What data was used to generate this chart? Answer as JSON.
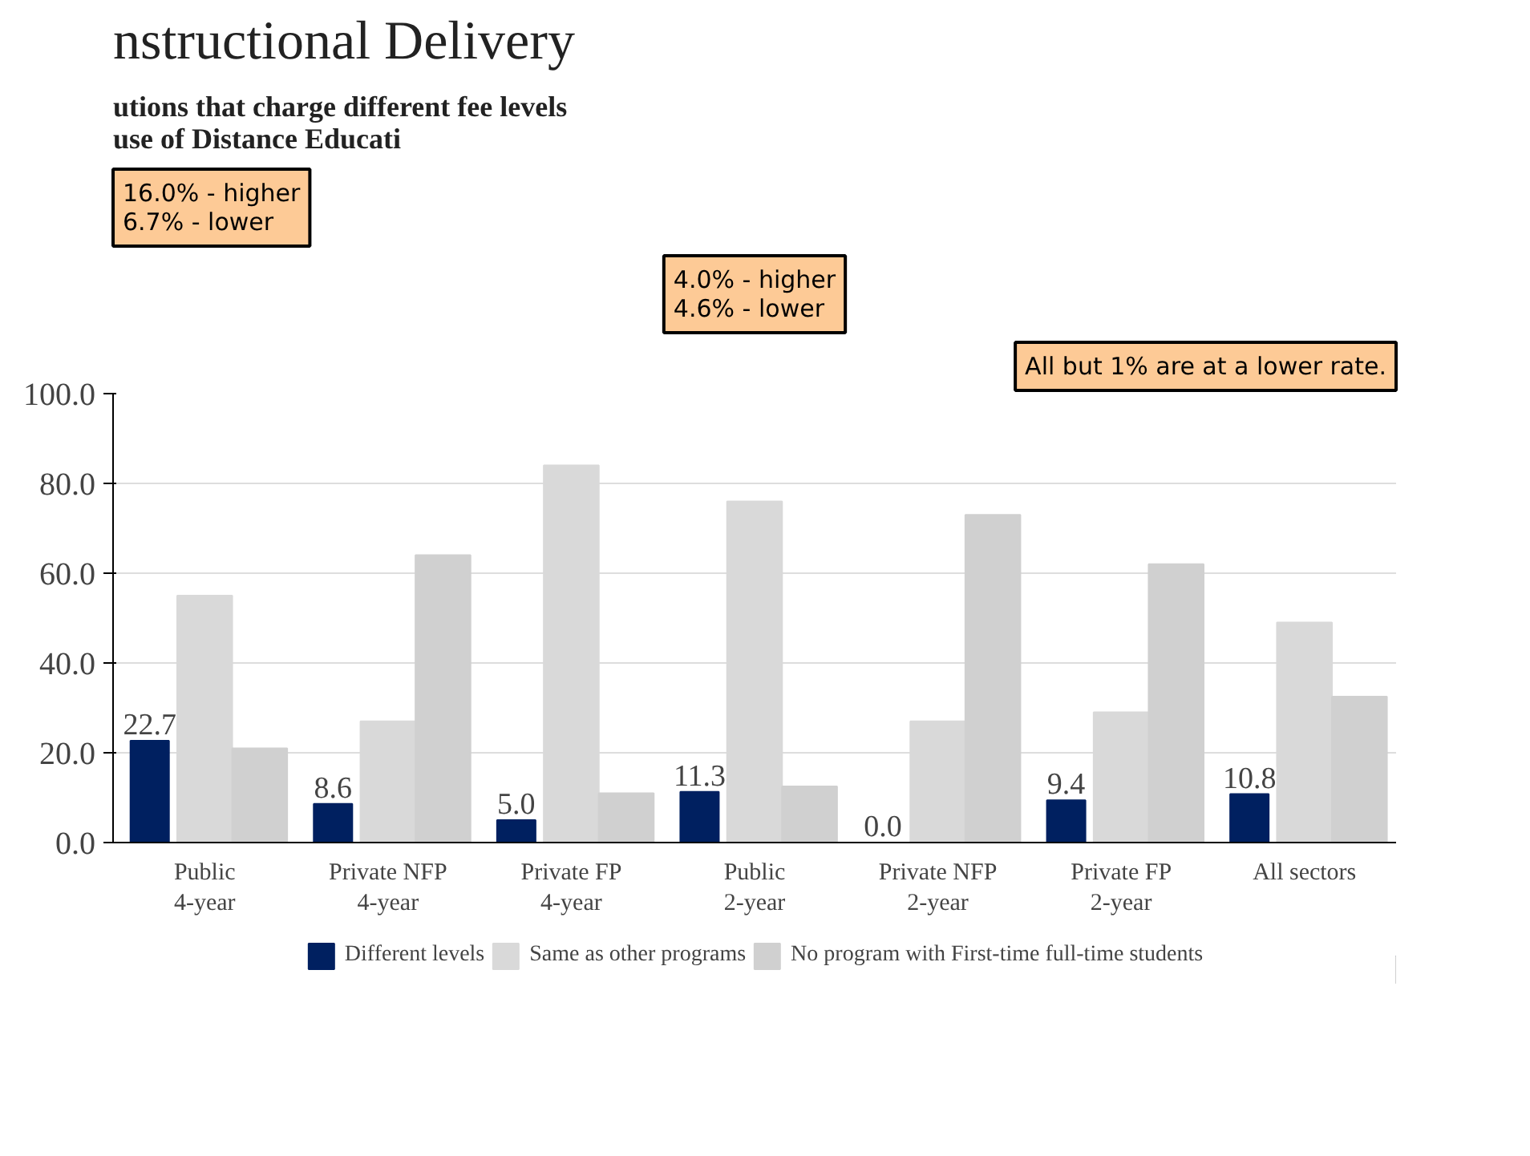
{
  "chart_data": {
    "type": "bar",
    "title": "nstructional Delivery",
    "subtitle": "utions that charge different fee levels\nuse of Distance Educati",
    "categories": [
      "Public\n4-year",
      "Private NFP\n4-year",
      "Private FP\n4-year",
      "Public\n2-year",
      "Private NFP\n2-year",
      "Private FP\n2-year",
      "All sectors"
    ],
    "series": [
      {
        "name": "Different levels",
        "color": "#002060",
        "values": [
          22.7,
          8.6,
          5.0,
          11.3,
          0.0,
          9.4,
          10.8
        ],
        "value_labels": [
          "22.7",
          "8.6",
          "5.0",
          "11.3",
          "0.0",
          "9.4",
          "10.8"
        ]
      },
      {
        "name": "Same as other programs",
        "color": "#d9d9d9",
        "values": [
          55,
          27,
          84,
          76,
          27,
          29,
          49
        ]
      },
      {
        "name": "No program with First-time full-time students",
        "color": "#d0d0d0",
        "values": [
          21,
          64,
          11,
          12.5,
          73,
          62,
          32.5
        ]
      }
    ],
    "ylim": [
      0,
      100
    ],
    "yticks": [
      {
        "value": 0,
        "label": "0.0"
      },
      {
        "value": 20,
        "label": "20.0"
      },
      {
        "value": 40,
        "label": "40.0"
      },
      {
        "value": 60,
        "label": "60.0"
      },
      {
        "value": 80,
        "label": "80.0"
      },
      {
        "value": 100,
        "label": "100.0"
      }
    ],
    "grid": "y",
    "legend": "bottom",
    "annotations": [
      "16.0% - higher\n6.7% - lower",
      "4.0% - higher\n4.6% - lower",
      "All but 1% are at a lower rate."
    ]
  }
}
